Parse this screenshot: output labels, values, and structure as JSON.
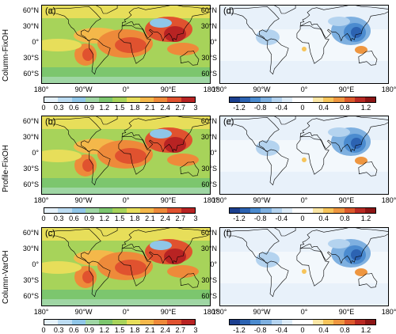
{
  "rows": [
    {
      "label": "Column-FixOH",
      "left_panel": "(a)",
      "right_panel": "(d)"
    },
    {
      "label": "Profile-FixOH",
      "left_panel": "(b)",
      "right_panel": "(e)"
    },
    {
      "label": "Column-VarOH",
      "left_panel": "(c)",
      "right_panel": "(f)"
    }
  ],
  "lat_ticks": [
    "60°N",
    "30°N",
    "0°",
    "30°S",
    "60°S"
  ],
  "lon_ticks": [
    "180°",
    "90°W",
    "0°",
    "90°E",
    "180°"
  ],
  "abs_colorbar": {
    "ticks": [
      "0",
      "0.3",
      "0.6",
      "0.9",
      "1.2",
      "1.5",
      "1.8",
      "2.1",
      "2.4",
      "2.7",
      "3"
    ],
    "colors": [
      "#e6f2fb",
      "#bcdcf2",
      "#8fc6e8",
      "#9fd6a4",
      "#7cc66e",
      "#a7d35a",
      "#e7de5a",
      "#f4b84a",
      "#ee8a3a",
      "#e0522f",
      "#b82323"
    ]
  },
  "diff_colorbar": {
    "ticks": [
      "-1.2",
      "-0.8",
      "-0.4",
      "0",
      "0.4",
      "0.8",
      "1.2"
    ],
    "colors": [
      "#1b3f8f",
      "#2c63b2",
      "#4b8bcf",
      "#7eb0e0",
      "#b4d3ef",
      "#ddebf7",
      "#ffffff",
      "#ffffff",
      "#fbe6a5",
      "#f6c45a",
      "#ee9640",
      "#dc5a2c",
      "#b92a23",
      "#8c1515"
    ]
  }
}
